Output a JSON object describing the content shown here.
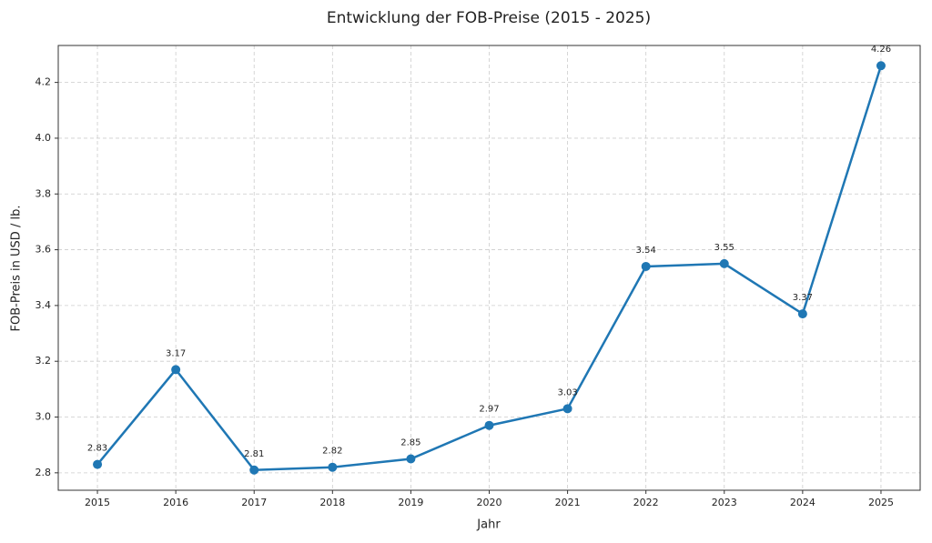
{
  "chart_data": {
    "type": "line",
    "title": "Entwicklung der FOB-Preise (2015 - 2025)",
    "x_label": "Jahr",
    "y_label": "FOB-Preis in USD / lb.",
    "x": [
      2015,
      2016,
      2017,
      2018,
      2019,
      2020,
      2021,
      2022,
      2023,
      2024,
      2025
    ],
    "series": [
      {
        "name": "FOB-Preis",
        "color": "#1f77b4",
        "values": [
          2.83,
          3.17,
          2.81,
          2.82,
          2.85,
          2.97,
          3.03,
          3.54,
          3.55,
          3.37,
          4.26
        ]
      }
    ],
    "xlim": [
      2014.5,
      2025.5
    ],
    "xticks": [
      2015,
      2016,
      2017,
      2018,
      2019,
      2020,
      2021,
      2022,
      2023,
      2024,
      2025
    ],
    "ylim": [
      2.7375,
      4.3325
    ],
    "yticks": [
      2.8,
      {
        "value": 3.0,
        "label": "3.0"
      },
      3.2,
      3.4,
      3.6,
      3.8,
      {
        "value": 4.0,
        "label": "4.0"
      },
      4.2
    ],
    "grid": true
  }
}
